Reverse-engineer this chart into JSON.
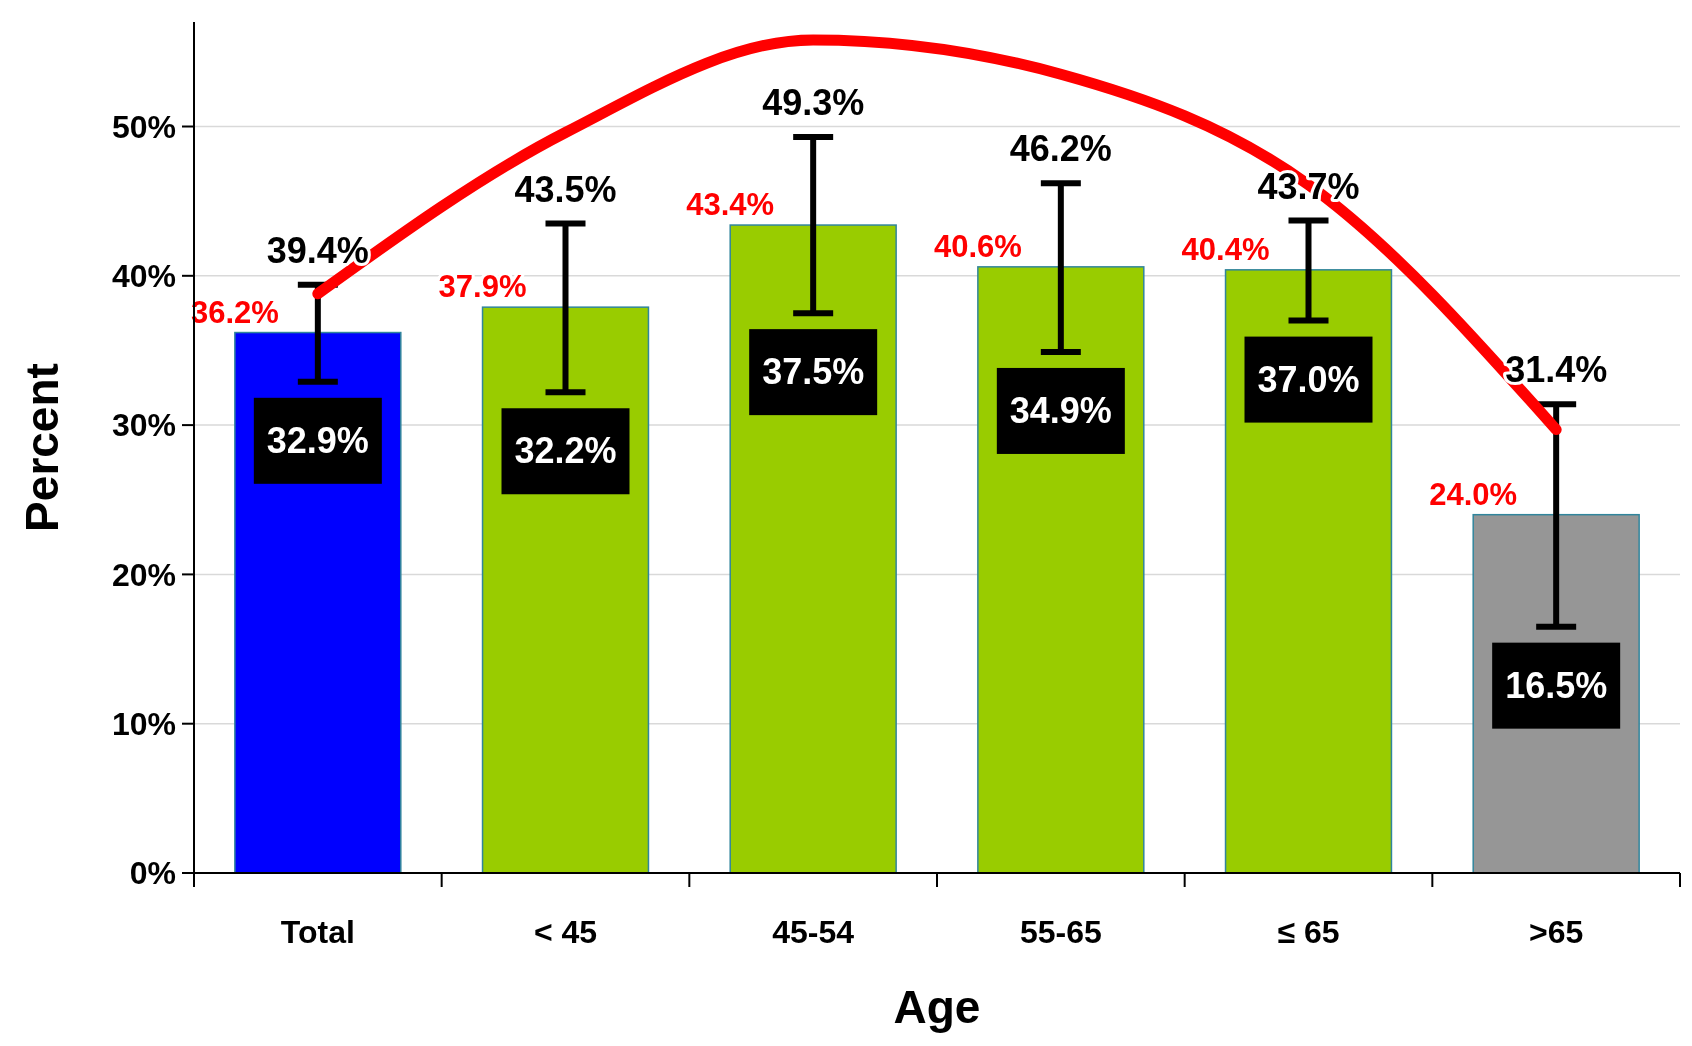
{
  "chart_data": {
    "type": "bar",
    "xlabel": "Age",
    "ylabel": "Percent",
    "categories": [
      "Total",
      "< 45",
      "45-54",
      "55-65",
      "≤ 65",
      ">65"
    ],
    "series": [
      {
        "values": [
          36.2,
          37.9,
          43.4,
          40.6,
          40.4,
          24.0
        ],
        "colors": [
          "#0000ff",
          "#99cc00",
          "#99cc00",
          "#99cc00",
          "#99cc00",
          "#969696"
        ],
        "errors": [
          [
            32.9,
            39.4
          ],
          [
            32.2,
            43.5
          ],
          [
            37.5,
            49.3
          ],
          [
            34.9,
            46.2
          ],
          [
            37.0,
            43.7
          ],
          [
            16.5,
            31.4
          ]
        ],
        "value_labels": [
          "36.2%",
          "37.9%",
          "43.4%",
          "40.6%",
          "40.4%",
          "24.0%"
        ]
      },
      {
        "type": "line",
        "color": "#ff0000",
        "values": [
          38.8,
          49.6,
          55.8,
          53.5,
          46.1,
          29.7
        ]
      }
    ],
    "annotations": [
      {
        "text": "39.4%",
        "x": "Total",
        "y": 39.4
      },
      {
        "text": "43.5%",
        "x": "< 45",
        "y": 43.5
      },
      {
        "text": "49.3%",
        "x": "45-54",
        "y": 49.3
      },
      {
        "text": "46.2%",
        "x": "55-65",
        "y": 46.2
      },
      {
        "text": "43.7%",
        "x": "≤ 65",
        "y": 43.7
      },
      {
        "text": "31.4%",
        "x": ">65",
        "y": 31.4
      },
      {
        "text": "32.9%",
        "x": "Total",
        "y": 32.9
      },
      {
        "text": "32.2%",
        "x": "< 45",
        "y": 32.2
      },
      {
        "text": "37.5%",
        "x": "45-54",
        "y": 37.5
      },
      {
        "text": "34.9%",
        "x": "55-65",
        "y": 34.9
      },
      {
        "text": "37.0%",
        "x": "≤ 65",
        "y": 37.0
      },
      {
        "text": "16.5%",
        "x": ">65",
        "y": 16.5
      }
    ],
    "ylim": [
      0,
      57
    ],
    "yticks": [
      {
        "value": 0,
        "label": "0%"
      },
      {
        "value": 10,
        "label": "10%"
      },
      {
        "value": 20,
        "label": "20%"
      },
      {
        "value": 30,
        "label": "30%"
      },
      {
        "value": 40,
        "label": "40%"
      },
      {
        "value": 50,
        "label": "50%"
      }
    ],
    "grid": "y"
  }
}
